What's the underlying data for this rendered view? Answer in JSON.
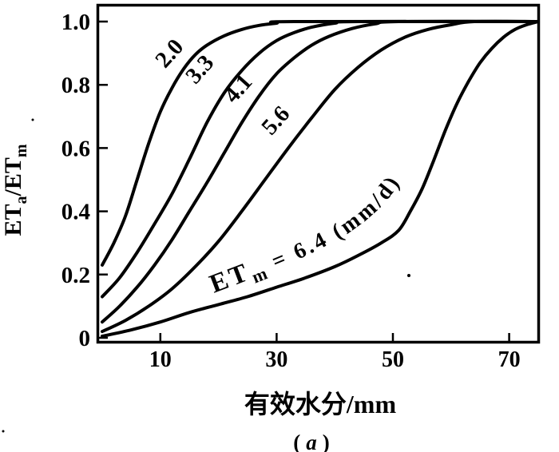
{
  "figure": {
    "caption": {
      "open": "(",
      "letter": "a",
      "close": ")"
    }
  },
  "chart_data": {
    "type": "line",
    "title": "",
    "xlabel": "有效水分/mm",
    "ylabel": "ETa/ETm",
    "ylabel_parts": {
      "et": "ET",
      "sub_a": "a",
      "slash_et": "/ET",
      "sub_m": "m"
    },
    "xlim": [
      0,
      75
    ],
    "ylim": [
      0,
      1.05
    ],
    "grid": false,
    "legend": "labels-on-curves",
    "x_ticks": [
      {
        "value": 10,
        "label": "10"
      },
      {
        "value": 30,
        "label": "30"
      },
      {
        "value": 50,
        "label": "50"
      },
      {
        "value": 70,
        "label": "70"
      }
    ],
    "y_ticks": [
      {
        "value": 1.0,
        "label": "1.0"
      },
      {
        "value": 0.8,
        "label": "0.8"
      },
      {
        "value": 0.6,
        "label": "0.6"
      },
      {
        "value": 0.4,
        "label": "0.4"
      },
      {
        "value": 0.2,
        "label": "0.2"
      },
      {
        "value": 0.0,
        "label": "0"
      }
    ],
    "series": [
      {
        "name": "ETm = 2.0 mm/d",
        "etm_value": 2.0,
        "label": "2.0",
        "points": [
          [
            0,
            0.23
          ],
          [
            2,
            0.3
          ],
          [
            4,
            0.385
          ],
          [
            6,
            0.5
          ],
          [
            8,
            0.615
          ],
          [
            10,
            0.715
          ],
          [
            12,
            0.79
          ],
          [
            14,
            0.85
          ],
          [
            16,
            0.895
          ],
          [
            18,
            0.925
          ],
          [
            21,
            0.955
          ],
          [
            24,
            0.975
          ],
          [
            27,
            0.988
          ],
          [
            30,
            0.995
          ],
          [
            33,
            1.0
          ],
          [
            75,
            1.0
          ]
        ]
      },
      {
        "name": "ETm = 3.3 mm/d",
        "etm_value": 3.3,
        "label": "3.3",
        "points": [
          [
            0,
            0.13
          ],
          [
            3,
            0.19
          ],
          [
            6,
            0.27
          ],
          [
            9,
            0.36
          ],
          [
            12,
            0.455
          ],
          [
            15,
            0.565
          ],
          [
            18,
            0.68
          ],
          [
            21,
            0.775
          ],
          [
            24,
            0.845
          ],
          [
            27,
            0.9
          ],
          [
            30,
            0.94
          ],
          [
            33,
            0.965
          ],
          [
            36,
            0.982
          ],
          [
            40,
            0.995
          ],
          [
            44,
            1.0
          ],
          [
            75,
            1.0
          ]
        ]
      },
      {
        "name": "ETm = 4.1 mm/d",
        "etm_value": 4.1,
        "label": "4.1",
        "points": [
          [
            0,
            0.05
          ],
          [
            3,
            0.1
          ],
          [
            6,
            0.16
          ],
          [
            9,
            0.23
          ],
          [
            12,
            0.31
          ],
          [
            15,
            0.4
          ],
          [
            18,
            0.49
          ],
          [
            21,
            0.585
          ],
          [
            24,
            0.68
          ],
          [
            27,
            0.765
          ],
          [
            30,
            0.835
          ],
          [
            33,
            0.885
          ],
          [
            36,
            0.925
          ],
          [
            39,
            0.953
          ],
          [
            43,
            0.978
          ],
          [
            47,
            0.993
          ],
          [
            51,
            1.0
          ],
          [
            75,
            1.0
          ]
        ]
      },
      {
        "name": "ETm = 5.6 mm/d",
        "etm_value": 5.6,
        "label": "5.6",
        "points": [
          [
            0,
            0.02
          ],
          [
            4,
            0.055
          ],
          [
            8,
            0.1
          ],
          [
            12,
            0.155
          ],
          [
            16,
            0.225
          ],
          [
            20,
            0.305
          ],
          [
            24,
            0.4
          ],
          [
            28,
            0.5
          ],
          [
            32,
            0.6
          ],
          [
            36,
            0.695
          ],
          [
            40,
            0.785
          ],
          [
            44,
            0.855
          ],
          [
            48,
            0.91
          ],
          [
            52,
            0.95
          ],
          [
            56,
            0.975
          ],
          [
            60,
            0.99
          ],
          [
            64,
            1.0
          ],
          [
            75,
            1.0
          ]
        ]
      },
      {
        "name": "ETm = 6.4 mm/d",
        "etm_value": 6.4,
        "label": "6.4",
        "points": [
          [
            0,
            0.005
          ],
          [
            5,
            0.025
          ],
          [
            10,
            0.05
          ],
          [
            15,
            0.08
          ],
          [
            20,
            0.105
          ],
          [
            25,
            0.13
          ],
          [
            30,
            0.16
          ],
          [
            35,
            0.19
          ],
          [
            40,
            0.225
          ],
          [
            44,
            0.26
          ],
          [
            48,
            0.3
          ],
          [
            51,
            0.34
          ],
          [
            53,
            0.4
          ],
          [
            55,
            0.47
          ],
          [
            57,
            0.56
          ],
          [
            59,
            0.655
          ],
          [
            61,
            0.74
          ],
          [
            63,
            0.81
          ],
          [
            65,
            0.87
          ],
          [
            67,
            0.915
          ],
          [
            69,
            0.95
          ],
          [
            71,
            0.975
          ],
          [
            73,
            0.99
          ],
          [
            75,
            1.0
          ]
        ]
      }
    ],
    "annotation": {
      "et": "ET",
      "sub": "m",
      "rest": "= 6.4 (mm/d)"
    },
    "line_color": "#000000",
    "background": "#ffffff"
  }
}
